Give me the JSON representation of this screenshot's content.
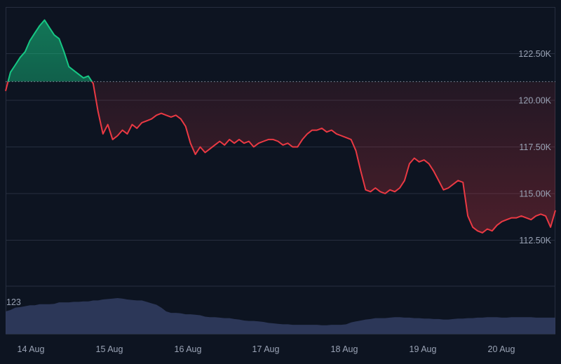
{
  "chart_data": {
    "type": "area",
    "title": "",
    "xlabel": "",
    "ylabel": "",
    "y_tick_labels": [
      "122.50K",
      "120.00K",
      "117.50K",
      "115.00K",
      "112.50K"
    ],
    "y_tick_values": [
      122500,
      120000,
      117500,
      115000,
      112500
    ],
    "x_tick_labels": [
      "14 Aug",
      "15 Aug",
      "16 Aug",
      "17 Aug",
      "18 Aug",
      "19 Aug",
      "20 Aug"
    ],
    "ylim": [
      108500,
      124700
    ],
    "baseline": 121000,
    "colors": {
      "above": "#16c784",
      "below": "#ea3943",
      "volume": "#323d62",
      "background": "#0d1421",
      "grid": "#262e3f"
    },
    "series": [
      {
        "values": [
          120500,
          121500,
          121900,
          122300,
          122600,
          123200,
          123600,
          124000,
          124300,
          123900,
          123500,
          123300,
          122600,
          121800,
          121600,
          121400,
          121200,
          121300,
          120900,
          119400,
          118200,
          118700,
          117900,
          118100,
          118400,
          118200,
          118700,
          118500,
          118800,
          118900,
          119000,
          119200,
          119300,
          119200,
          119100,
          119200,
          119000,
          118600,
          117700,
          117100,
          117500,
          117200,
          117400,
          117600,
          117800,
          117600,
          117900,
          117700,
          117900,
          117700,
          117800,
          117500,
          117700,
          117800,
          117900,
          117900,
          117800,
          117600,
          117700,
          117500,
          117500,
          117900,
          118200,
          118400,
          118400,
          118500,
          118300,
          118400,
          118200,
          118100,
          118000,
          117900,
          117300,
          116200,
          115200,
          115100,
          115300,
          115100,
          115000,
          115200,
          115100,
          115300,
          115700,
          116600,
          116900,
          116700,
          116800,
          116600,
          116200,
          115700,
          115200,
          115300,
          115500,
          115700,
          115600,
          113800,
          113200,
          113000,
          112900,
          113100,
          113000,
          113300,
          113500,
          113600,
          113700,
          113700,
          113800,
          113700,
          113600,
          113800,
          113900,
          113800,
          113200,
          114100
        ]
      }
    ],
    "volume": {
      "label": "123",
      "values": [
        0.47,
        0.5,
        0.55,
        0.56,
        0.58,
        0.6,
        0.6,
        0.62,
        0.62,
        0.62,
        0.63,
        0.66,
        0.66,
        0.66,
        0.67,
        0.67,
        0.68,
        0.68,
        0.7,
        0.7,
        0.72,
        0.73,
        0.74,
        0.75,
        0.74,
        0.72,
        0.71,
        0.7,
        0.7,
        0.67,
        0.64,
        0.61,
        0.55,
        0.47,
        0.44,
        0.44,
        0.43,
        0.41,
        0.41,
        0.4,
        0.39,
        0.36,
        0.35,
        0.35,
        0.34,
        0.33,
        0.33,
        0.31,
        0.3,
        0.28,
        0.27,
        0.27,
        0.26,
        0.25,
        0.23,
        0.22,
        0.21,
        0.2,
        0.2,
        0.19,
        0.19,
        0.19,
        0.19,
        0.19,
        0.19,
        0.18,
        0.18,
        0.19,
        0.19,
        0.19,
        0.2,
        0.24,
        0.26,
        0.28,
        0.3,
        0.31,
        0.33,
        0.33,
        0.33,
        0.34,
        0.35,
        0.35,
        0.34,
        0.34,
        0.33,
        0.33,
        0.32,
        0.32,
        0.31,
        0.31,
        0.3,
        0.3,
        0.31,
        0.32,
        0.32,
        0.33,
        0.33,
        0.34,
        0.34,
        0.35,
        0.35,
        0.35,
        0.34,
        0.34,
        0.35,
        0.35,
        0.35,
        0.35,
        0.35,
        0.34,
        0.34,
        0.34,
        0.34,
        0.34
      ]
    },
    "grid": true,
    "y_axis_position": "right"
  }
}
